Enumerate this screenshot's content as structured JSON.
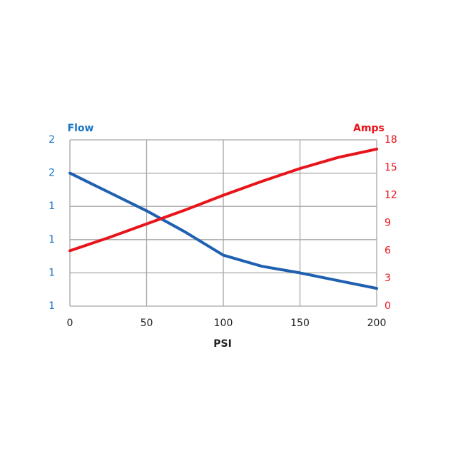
{
  "chart_data": {
    "type": "line",
    "y_label": "Flow",
    "y2_label": "Amps",
    "x_label": "PSI",
    "x": [
      0,
      25,
      50,
      75,
      100,
      125,
      150,
      175,
      200
    ],
    "series": [
      {
        "name": "Flow",
        "color": "#2060b0",
        "axis": "y",
        "values": [
          1.6,
          1.515,
          1.43,
          1.335,
          1.23,
          1.18,
          1.15,
          1.115,
          1.08
        ]
      },
      {
        "name": "Amps",
        "color": "#e8141b",
        "axis": "y2",
        "values": [
          6.0,
          7.4,
          8.9,
          10.4,
          12.0,
          13.5,
          14.9,
          16.1,
          17.0
        ]
      }
    ],
    "xlim": [
      0,
      200
    ],
    "xticks": [
      0,
      50,
      100,
      150,
      200
    ],
    "ylim": [
      1.0,
      1.75
    ],
    "yticks": [
      {
        "value": 1.0,
        "label": "1"
      },
      {
        "value": 1.15,
        "label": "1"
      },
      {
        "value": 1.3,
        "label": "1"
      },
      {
        "value": 1.45,
        "label": "1"
      },
      {
        "value": 1.6,
        "label": "2"
      },
      {
        "value": 1.75,
        "label": "2"
      }
    ],
    "y2lim": [
      0,
      18
    ],
    "y2ticks": [
      0,
      3,
      6,
      9,
      12,
      15,
      18
    ],
    "y_color": "#1a74c4",
    "y2_color": "#e8141b",
    "grid": true
  }
}
